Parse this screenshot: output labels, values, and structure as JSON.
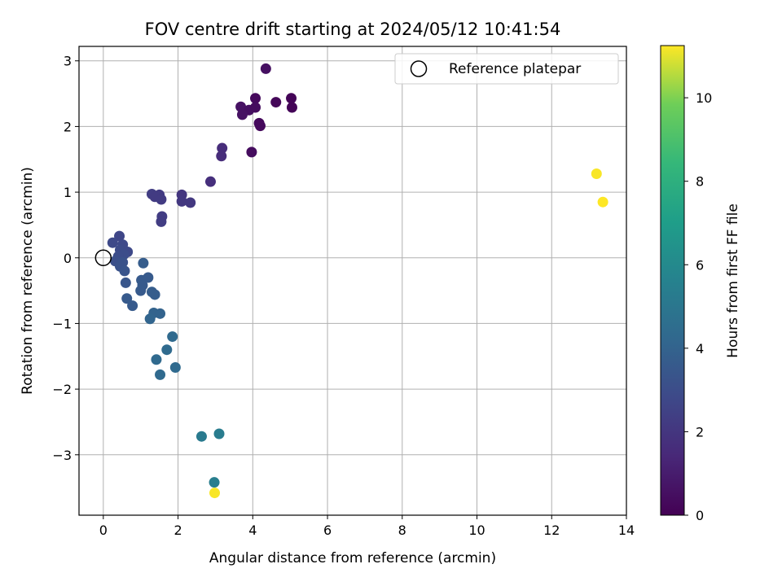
{
  "chart_data": {
    "type": "scatter",
    "title": "FOV centre drift starting at 2024/05/12 10:41:54",
    "xlabel": "Angular distance from reference (arcmin)",
    "ylabel": "Rotation from reference (arcmin)",
    "xlim": [
      -0.65,
      14.0
    ],
    "ylim": [
      -3.92,
      3.22
    ],
    "xticks": [
      0,
      2,
      4,
      6,
      8,
      10,
      12,
      14
    ],
    "xtick_labels": [
      "0",
      "2",
      "4",
      "6",
      "8",
      "10",
      "12",
      "14"
    ],
    "yticks": [
      -3,
      -2,
      -1,
      0,
      1,
      2,
      3
    ],
    "ytick_labels": [
      "−3",
      "−2",
      "−1",
      "0",
      "1",
      "2",
      "3"
    ],
    "grid": true,
    "legend": {
      "position": "top-right",
      "entries": [
        "Reference platepar"
      ]
    },
    "reference_point": {
      "x": 0,
      "y": 0
    },
    "colorbar": {
      "label": "Hours from first FF file",
      "colormap": "viridis",
      "range": [
        0,
        11.25
      ],
      "ticks": [
        0,
        2,
        4,
        6,
        8,
        10
      ],
      "tick_labels": [
        "0",
        "2",
        "4",
        "6",
        "8",
        "10"
      ]
    },
    "points": [
      {
        "x": 4.35,
        "y": 2.88,
        "c": 0.5
      },
      {
        "x": 4.07,
        "y": 2.43,
        "c": 0.3
      },
      {
        "x": 5.03,
        "y": 2.43,
        "c": 0.1
      },
      {
        "x": 4.62,
        "y": 2.37,
        "c": 0.2
      },
      {
        "x": 3.68,
        "y": 2.3,
        "c": 0.6
      },
      {
        "x": 3.9,
        "y": 2.25,
        "c": 0.5
      },
      {
        "x": 4.07,
        "y": 2.29,
        "c": 0.4
      },
      {
        "x": 5.05,
        "y": 2.29,
        "c": 0.1
      },
      {
        "x": 3.72,
        "y": 2.18,
        "c": 0.6
      },
      {
        "x": 4.17,
        "y": 2.05,
        "c": 0.3
      },
      {
        "x": 4.2,
        "y": 2.01,
        "c": 0.3
      },
      {
        "x": 3.97,
        "y": 1.61,
        "c": 0.4
      },
      {
        "x": 3.18,
        "y": 1.67,
        "c": 1.6
      },
      {
        "x": 3.16,
        "y": 1.55,
        "c": 1.6
      },
      {
        "x": 2.87,
        "y": 1.16,
        "c": 1.7
      },
      {
        "x": 1.3,
        "y": 0.97,
        "c": 2.3
      },
      {
        "x": 1.5,
        "y": 0.96,
        "c": 2.2
      },
      {
        "x": 2.1,
        "y": 0.96,
        "c": 2.0
      },
      {
        "x": 1.38,
        "y": 0.93,
        "c": 2.2
      },
      {
        "x": 1.55,
        "y": 0.89,
        "c": 2.2
      },
      {
        "x": 2.1,
        "y": 0.86,
        "c": 2.1
      },
      {
        "x": 2.33,
        "y": 0.84,
        "c": 2.1
      },
      {
        "x": 1.57,
        "y": 0.63,
        "c": 2.3
      },
      {
        "x": 1.55,
        "y": 0.55,
        "c": 2.3
      },
      {
        "x": 0.43,
        "y": 0.33,
        "c": 2.7
      },
      {
        "x": 0.25,
        "y": 0.23,
        "c": 2.8
      },
      {
        "x": 0.52,
        "y": 0.2,
        "c": 2.8
      },
      {
        "x": 0.45,
        "y": 0.12,
        "c": 2.9
      },
      {
        "x": 0.65,
        "y": 0.09,
        "c": 2.8
      },
      {
        "x": 0.55,
        "y": 0.05,
        "c": 3.0
      },
      {
        "x": 0.4,
        "y": 0.02,
        "c": 3.0
      },
      {
        "x": 0.32,
        "y": -0.05,
        "c": 3.1
      },
      {
        "x": 0.52,
        "y": -0.07,
        "c": 3.2
      },
      {
        "x": 0.45,
        "y": -0.13,
        "c": 3.2
      },
      {
        "x": 0.57,
        "y": -0.2,
        "c": 3.3
      },
      {
        "x": 0.6,
        "y": -0.38,
        "c": 3.4
      },
      {
        "x": 1.07,
        "y": -0.08,
        "c": 3.7
      },
      {
        "x": 1.02,
        "y": -0.34,
        "c": 3.6
      },
      {
        "x": 1.2,
        "y": -0.3,
        "c": 3.6
      },
      {
        "x": 1.05,
        "y": -0.42,
        "c": 3.6
      },
      {
        "x": 1.0,
        "y": -0.5,
        "c": 3.6
      },
      {
        "x": 1.3,
        "y": -0.52,
        "c": 3.7
      },
      {
        "x": 1.38,
        "y": -0.56,
        "c": 3.7
      },
      {
        "x": 0.63,
        "y": -0.62,
        "c": 3.6
      },
      {
        "x": 0.78,
        "y": -0.73,
        "c": 3.6
      },
      {
        "x": 1.35,
        "y": -0.84,
        "c": 4.0
      },
      {
        "x": 1.52,
        "y": -0.85,
        "c": 4.0
      },
      {
        "x": 1.25,
        "y": -0.93,
        "c": 4.1
      },
      {
        "x": 1.85,
        "y": -1.2,
        "c": 4.3
      },
      {
        "x": 1.7,
        "y": -1.4,
        "c": 4.4
      },
      {
        "x": 1.42,
        "y": -1.55,
        "c": 4.3
      },
      {
        "x": 1.93,
        "y": -1.67,
        "c": 4.3
      },
      {
        "x": 1.52,
        "y": -1.78,
        "c": 4.3
      },
      {
        "x": 2.63,
        "y": -2.72,
        "c": 5.2
      },
      {
        "x": 3.1,
        "y": -2.68,
        "c": 5.3
      },
      {
        "x": 2.97,
        "y": -3.42,
        "c": 5.4
      },
      {
        "x": 2.98,
        "y": -3.58,
        "c": 11.2
      },
      {
        "x": 13.2,
        "y": 1.28,
        "c": 11.2
      },
      {
        "x": 13.37,
        "y": 0.85,
        "c": 11.25
      }
    ]
  }
}
